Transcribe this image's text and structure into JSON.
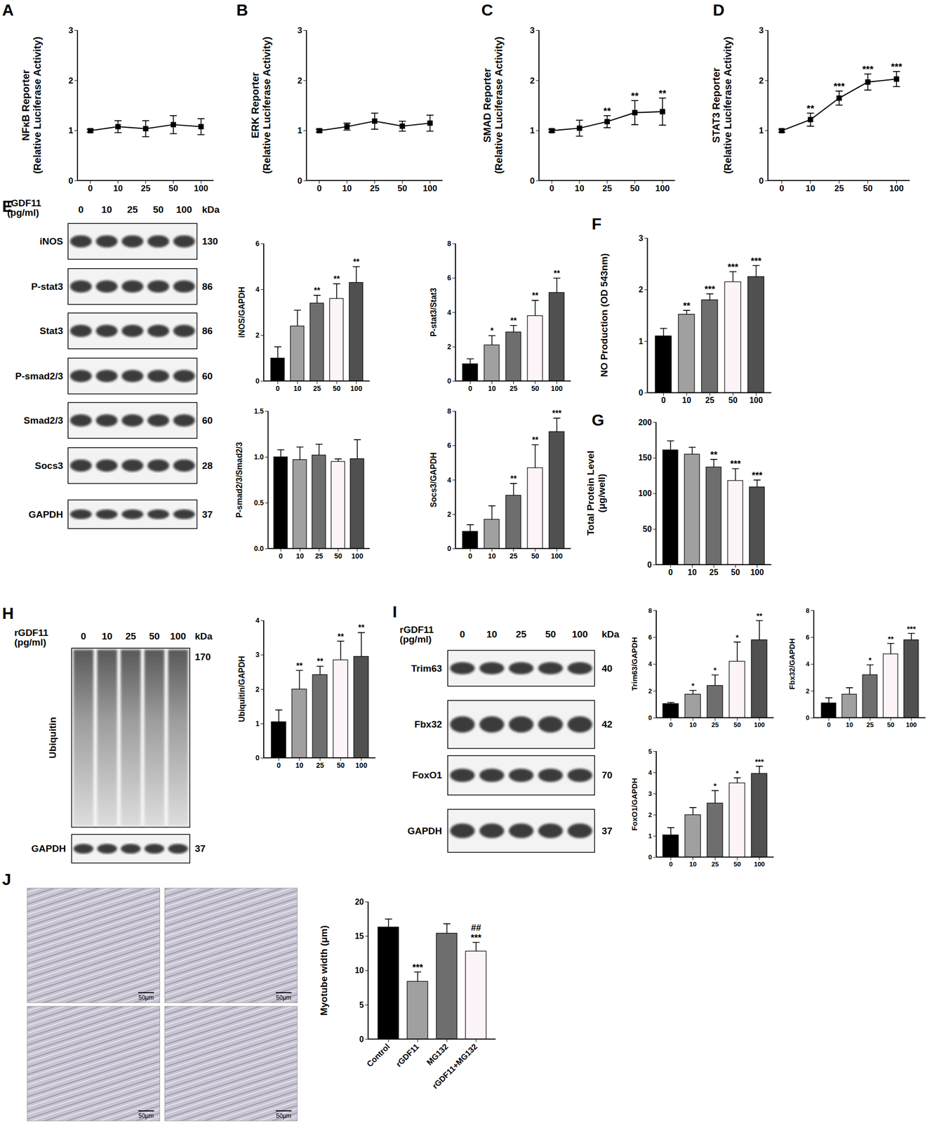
{
  "panels": [
    "A",
    "B",
    "C",
    "D",
    "E",
    "F",
    "G",
    "H",
    "I",
    "J"
  ],
  "chart_data": [
    {
      "type": "line",
      "ylabel": "NFκB Reporter\n(Relative Luciferase Activity)",
      "categories": [
        "0",
        "10",
        "25",
        "50",
        "100"
      ],
      "values": [
        1,
        1.08,
        1.04,
        1.12,
        1.08
      ],
      "errors": [
        0.03,
        0.12,
        0.16,
        0.18,
        0.16
      ],
      "significance": [
        null,
        null,
        null,
        null,
        null
      ],
      "ylim": [
        0,
        3
      ],
      "yticks": [
        0,
        1,
        2,
        3
      ],
      "color": "#000000",
      "marker": "square"
    },
    {
      "type": "line",
      "ylabel": "ERK Reporter\n(Relative Luciferase Activity)",
      "categories": [
        "0",
        "10",
        "25",
        "50",
        "100"
      ],
      "values": [
        1,
        1.08,
        1.19,
        1.09,
        1.15
      ],
      "errors": [
        0.03,
        0.07,
        0.16,
        0.1,
        0.16
      ],
      "significance": [
        null,
        null,
        null,
        null,
        null
      ],
      "ylim": [
        0,
        3
      ],
      "yticks": [
        0,
        1,
        2,
        3
      ],
      "color": "#000000",
      "marker": "square"
    },
    {
      "type": "line",
      "ylabel": "SMAD Reporter\n(Relative Luciferase Activity)",
      "categories": [
        "0",
        "10",
        "25",
        "50",
        "100"
      ],
      "values": [
        1,
        1.05,
        1.18,
        1.36,
        1.38
      ],
      "errors": [
        0.03,
        0.16,
        0.12,
        0.24,
        0.27
      ],
      "significance": [
        null,
        null,
        "**",
        "**",
        "**"
      ],
      "ylim": [
        0,
        3
      ],
      "yticks": [
        0,
        1,
        2,
        3
      ],
      "color": "#000000",
      "marker": "square"
    },
    {
      "type": "line",
      "ylabel": "STAT3 Reporter\n(Relative Luciferase Activity)",
      "categories": [
        "0",
        "10",
        "25",
        "50",
        "100"
      ],
      "values": [
        1,
        1.22,
        1.65,
        1.97,
        2.03
      ],
      "errors": [
        0.03,
        0.13,
        0.14,
        0.16,
        0.15
      ],
      "significance": [
        null,
        "**",
        "***",
        "***",
        "***"
      ],
      "ylim": [
        0,
        3
      ],
      "yticks": [
        0,
        1,
        2,
        3
      ],
      "color": "#000000",
      "marker": "square"
    },
    {
      "type": "bar",
      "ylabel": "iNOS/GAPDH",
      "categories": [
        "0",
        "10",
        "25",
        "50",
        "100"
      ],
      "values": [
        1.0,
        2.4,
        3.4,
        3.6,
        4.3
      ],
      "errors": [
        0.5,
        0.7,
        0.35,
        0.65,
        0.7
      ],
      "significance": [
        null,
        null,
        "**",
        "**",
        "**"
      ],
      "ylim": [
        0,
        6
      ],
      "yticks": [
        0,
        2,
        4,
        6
      ],
      "colors": [
        "#000000",
        "#a0a0a0",
        "#6e6e6e",
        "#fcf4f9",
        "#505050"
      ]
    },
    {
      "type": "bar",
      "ylabel": "P-stat3/Stat3",
      "categories": [
        "0",
        "10",
        "25",
        "50",
        "100"
      ],
      "values": [
        1.0,
        2.1,
        2.85,
        3.8,
        5.15
      ],
      "errors": [
        0.3,
        0.55,
        0.4,
        0.9,
        0.85
      ],
      "significance": [
        null,
        "*",
        "**",
        "**",
        "**"
      ],
      "ylim": [
        0,
        8
      ],
      "yticks": [
        0,
        2,
        4,
        6,
        8
      ],
      "colors": [
        "#000000",
        "#a0a0a0",
        "#6e6e6e",
        "#fcf4f9",
        "#505050"
      ]
    },
    {
      "type": "bar",
      "ylabel": "P-smad2/3/Smad2/3",
      "categories": [
        "0",
        "10",
        "25",
        "50",
        "100"
      ],
      "values": [
        1.0,
        0.97,
        1.02,
        0.95,
        0.98
      ],
      "errors": [
        0.08,
        0.14,
        0.12,
        0.03,
        0.21
      ],
      "significance": [
        null,
        null,
        null,
        null,
        null
      ],
      "ylim": [
        0,
        1.5
      ],
      "yticks": [
        {
          "value": 0,
          "label": "0.0"
        },
        {
          "value": 0.5,
          "label": "0.5"
        },
        {
          "value": 1,
          "label": "1.0"
        },
        {
          "value": 1.5,
          "label": "1.5"
        }
      ],
      "colors": [
        "#000000",
        "#a0a0a0",
        "#6e6e6e",
        "#fcf4f9",
        "#505050"
      ]
    },
    {
      "type": "bar",
      "ylabel": "Socs3/GAPDH",
      "categories": [
        "0",
        "10",
        "25",
        "50",
        "100"
      ],
      "values": [
        1.0,
        1.7,
        3.1,
        4.7,
        6.8
      ],
      "errors": [
        0.4,
        0.8,
        0.7,
        1.35,
        0.8
      ],
      "significance": [
        null,
        null,
        "**",
        "**",
        "***"
      ],
      "ylim": [
        0,
        8
      ],
      "yticks": [
        0,
        2,
        4,
        6,
        8
      ],
      "colors": [
        "#000000",
        "#a0a0a0",
        "#6e6e6e",
        "#fcf4f9",
        "#505050"
      ]
    },
    {
      "type": "bar",
      "ylabel": "NO Production (OD 543nm)",
      "categories": [
        "0",
        "10",
        "25",
        "50",
        "100"
      ],
      "values": [
        1.1,
        1.52,
        1.8,
        2.15,
        2.25
      ],
      "errors": [
        0.15,
        0.08,
        0.12,
        0.2,
        0.22
      ],
      "significance": [
        null,
        "**",
        "***",
        "***",
        "***"
      ],
      "ylim": [
        0,
        3
      ],
      "yticks": [
        0,
        1,
        2,
        3
      ],
      "colors": [
        "#000000",
        "#a0a0a0",
        "#6e6e6e",
        "#fcf4f9",
        "#505050"
      ]
    },
    {
      "type": "bar",
      "ylabel": "Total Protein Level\n(μg/well)",
      "categories": [
        "0",
        "10",
        "25",
        "50",
        "100"
      ],
      "values": [
        161,
        155,
        137,
        118,
        109
      ],
      "errors": [
        13,
        10,
        11,
        17,
        10
      ],
      "significance": [
        null,
        null,
        "**",
        "***",
        "***"
      ],
      "ylim": [
        0,
        200
      ],
      "yticks": [
        0,
        50,
        100,
        150,
        200
      ],
      "colors": [
        "#000000",
        "#a0a0a0",
        "#6e6e6e",
        "#fcf4f9",
        "#505050"
      ]
    },
    {
      "type": "bar",
      "ylabel": "Ubiquitin/GAPDH",
      "categories": [
        "0",
        "10",
        "25",
        "50",
        "100"
      ],
      "values": [
        1.05,
        2.0,
        2.42,
        2.85,
        2.95
      ],
      "errors": [
        0.35,
        0.55,
        0.25,
        0.55,
        0.7
      ],
      "significance": [
        null,
        "**",
        "**",
        "**",
        "**"
      ],
      "ylim": [
        0,
        4
      ],
      "yticks": [
        0,
        1,
        2,
        3,
        4
      ],
      "colors": [
        "#000000",
        "#a0a0a0",
        "#6e6e6e",
        "#fcf4f9",
        "#505050"
      ]
    },
    {
      "type": "bar",
      "ylabel": "Trim63/GAPDH",
      "categories": [
        "0",
        "10",
        "25",
        "50",
        "100"
      ],
      "values": [
        1.05,
        1.75,
        2.4,
        4.2,
        5.8
      ],
      "errors": [
        0.1,
        0.3,
        0.8,
        1.45,
        1.45
      ],
      "significance": [
        null,
        "*",
        "*",
        "*",
        "**"
      ],
      "ylim": [
        0,
        8
      ],
      "yticks": [
        0,
        2,
        4,
        6,
        8
      ],
      "colors": [
        "#000000",
        "#a0a0a0",
        "#6e6e6e",
        "#fcf4f9",
        "#505050"
      ]
    },
    {
      "type": "bar",
      "ylabel": "Fbx32/GAPDH",
      "categories": [
        "0",
        "10",
        "25",
        "50",
        "100"
      ],
      "values": [
        1.1,
        1.75,
        3.2,
        4.75,
        5.8
      ],
      "errors": [
        0.4,
        0.5,
        0.75,
        0.8,
        0.5
      ],
      "significance": [
        null,
        null,
        "*",
        "**",
        "***"
      ],
      "ylim": [
        0,
        8
      ],
      "yticks": [
        0,
        2,
        4,
        6,
        8
      ],
      "colors": [
        "#000000",
        "#a0a0a0",
        "#6e6e6e",
        "#fcf4f9",
        "#505050"
      ]
    },
    {
      "type": "bar",
      "ylabel": "FoxO1/GAPDH",
      "categories": [
        "0",
        "10",
        "25",
        "50",
        "100"
      ],
      "values": [
        1.05,
        2.0,
        2.55,
        3.5,
        3.95
      ],
      "errors": [
        0.35,
        0.35,
        0.6,
        0.25,
        0.35
      ],
      "significance": [
        null,
        null,
        "*",
        "*",
        "***"
      ],
      "ylim": [
        0,
        5
      ],
      "yticks": [
        0,
        1,
        2,
        3,
        4,
        5
      ],
      "colors": [
        "#000000",
        "#a0a0a0",
        "#6e6e6e",
        "#fcf4f9",
        "#505050"
      ]
    },
    {
      "type": "bar",
      "ylabel": "Myotube width (μm)",
      "categories": [
        "Control",
        "rGDF11",
        "MG132",
        "rGDF11+MG132"
      ],
      "values": [
        16.3,
        8.4,
        15.4,
        12.8
      ],
      "errors": [
        1.2,
        1.4,
        1.4,
        1.3
      ],
      "significance": [
        null,
        "***",
        null,
        "***"
      ],
      "significance2": [
        null,
        null,
        null,
        "##"
      ],
      "ylim": [
        0,
        20
      ],
      "yticks": [
        0,
        5,
        10,
        15,
        20
      ],
      "colors": [
        "#000000",
        "#a0a0a0",
        "#6e6e6e",
        "#fcf4f9"
      ]
    }
  ],
  "blots": [
    {
      "panel": "E",
      "treatment": "rGDF11",
      "unit": "(pg/ml)",
      "lanes": [
        "0",
        "10",
        "25",
        "50",
        "100"
      ],
      "mw_unit": "kDa",
      "rows": [
        {
          "label": "iNOS",
          "kDa": 130
        },
        {
          "label": "P-stat3",
          "kDa": 86
        },
        {
          "label": "Stat3",
          "kDa": 86
        },
        {
          "label": "P-smad2/3",
          "kDa": 60
        },
        {
          "label": "Smad2/3",
          "kDa": 60
        },
        {
          "label": "Socs3",
          "kDa": 28
        },
        {
          "label": "GAPDH",
          "kDa": 37
        }
      ]
    },
    {
      "panel": "H",
      "treatment": "rGDF11",
      "unit": "(pg/ml)",
      "lanes": [
        "0",
        "10",
        "25",
        "50",
        "100"
      ],
      "mw_unit": "kDa",
      "rows": [
        {
          "label": "Ubiquitin",
          "kDa": 170
        },
        {
          "label": "GAPDH",
          "kDa": 37
        }
      ]
    },
    {
      "panel": "I",
      "treatment": "rGDF11",
      "unit": "(pg/ml)",
      "lanes": [
        "0",
        "10",
        "25",
        "50",
        "100"
      ],
      "mw_unit": "kDa",
      "rows": [
        {
          "label": "Trim63",
          "kDa": 40
        },
        {
          "label": "Fbx32",
          "kDa": 42
        },
        {
          "label": "FoxO1",
          "kDa": 70
        },
        {
          "label": "GAPDH",
          "kDa": 37
        }
      ]
    }
  ],
  "micrographs": {
    "panel": "J",
    "scale_bars": [
      "50μm",
      "50μm",
      "50μm",
      "50μm"
    ]
  }
}
